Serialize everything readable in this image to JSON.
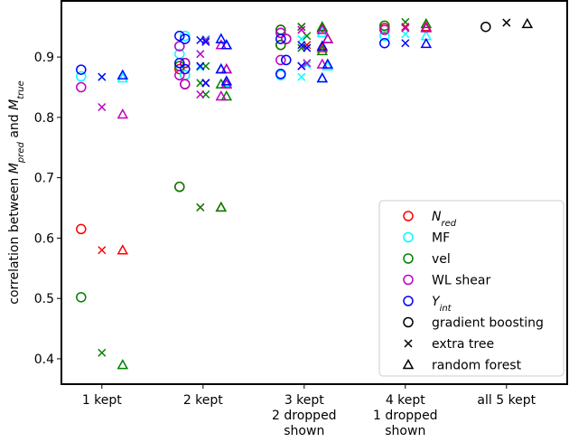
{
  "chart_data": {
    "type": "scatter",
    "y_label": [
      {
        "text": "correlation between "
      },
      {
        "text": "M",
        "italic": true
      },
      {
        "text": "pred",
        "sub": true,
        "italic": true
      },
      {
        "text": " and "
      },
      {
        "text": "M",
        "italic": true
      },
      {
        "text": "true",
        "sub": true,
        "italic": true
      }
    ],
    "categories": [
      [
        "1 kept"
      ],
      [
        "2 kept"
      ],
      [
        "3 kept",
        "2 dropped",
        "shown"
      ],
      [
        "4 kept",
        "1 dropped",
        "shown"
      ],
      [
        "all 5 kept"
      ]
    ],
    "ylim": [
      0.358,
      0.993
    ],
    "yticks": [
      0.4,
      0.5,
      0.6,
      0.7,
      0.8,
      0.9
    ],
    "features": [
      {
        "name": "N",
        "sub": "red",
        "italic": true,
        "color": "#ff0000"
      },
      {
        "name": "MF",
        "color": "#00ffff"
      },
      {
        "name": "vel",
        "color": "#008000"
      },
      {
        "name": "WL shear",
        "color": "#c000c0"
      },
      {
        "name": "Y",
        "sub": "int",
        "italic": true,
        "color": "#0000ff"
      }
    ],
    "models": [
      {
        "name": "gradient boosting",
        "marker": "o",
        "color": "#000000"
      },
      {
        "name": "extra tree",
        "marker": "x",
        "color": "#000000"
      },
      {
        "name": "random forest",
        "marker": "^",
        "color": "#000000"
      }
    ],
    "series": [
      {
        "feature": 0,
        "model": 0,
        "values": [
          [
            0.615
          ],
          [
            0.685,
            0.87,
            0.88,
            0.89
          ],
          [
            0.945,
            0.93,
            0.92
          ],
          [
            0.948
          ],
          []
        ]
      },
      {
        "feature": 0,
        "model": 1,
        "values": [
          [
            0.58
          ],
          [
            0.651,
            0.857,
            0.885,
            0.928
          ],
          [
            0.95,
            0.92,
            0.885
          ],
          [
            0.95
          ],
          []
        ]
      },
      {
        "feature": 0,
        "model": 2,
        "values": [
          [
            0.58
          ],
          [
            0.651,
            0.855,
            0.88,
            0.92
          ],
          [
            0.948,
            0.93,
            0.915
          ],
          [
            0.95
          ],
          []
        ]
      },
      {
        "feature": 1,
        "model": 0,
        "values": [
          [
            0.868
          ],
          [
            0.918,
            0.935,
            0.905,
            0.87
          ],
          [
            0.94,
            0.895,
            0.87
          ],
          [
            0.935
          ],
          []
        ]
      },
      {
        "feature": 1,
        "model": 1,
        "values": [
          [
            0.867
          ],
          [
            0.905,
            0.93,
            0.883,
            0.857
          ],
          [
            0.93,
            0.887,
            0.867
          ],
          [
            0.938
          ],
          []
        ]
      },
      {
        "feature": 1,
        "model": 2,
        "values": [
          [
            0.865
          ],
          [
            0.93,
            0.92,
            0.88,
            0.857
          ],
          [
            0.94,
            0.885,
            0.865
          ],
          [
            0.935
          ],
          []
        ]
      },
      {
        "feature": 2,
        "model": 0,
        "values": [
          [
            0.502
          ],
          [
            0.685,
            0.855,
            0.885,
            0.89
          ],
          [
            0.945,
            0.93,
            0.92
          ],
          [
            0.952
          ],
          []
        ]
      },
      {
        "feature": 2,
        "model": 1,
        "values": [
          [
            0.41
          ],
          [
            0.651,
            0.838,
            0.857,
            0.885
          ],
          [
            0.95,
            0.935,
            0.915
          ],
          [
            0.958
          ],
          []
        ]
      },
      {
        "feature": 2,
        "model": 2,
        "values": [
          [
            0.39
          ],
          [
            0.651,
            0.835,
            0.855,
            0.88
          ],
          [
            0.95,
            0.93,
            0.91
          ],
          [
            0.955
          ],
          []
        ]
      },
      {
        "feature": 3,
        "model": 0,
        "values": [
          [
            0.85
          ],
          [
            0.918,
            0.89,
            0.87,
            0.855
          ],
          [
            0.94,
            0.93,
            0.895
          ],
          [
            0.945
          ],
          []
        ]
      },
      {
        "feature": 3,
        "model": 1,
        "values": [
          [
            0.817
          ],
          [
            0.905,
            0.857,
            0.838,
            0.928
          ],
          [
            0.945,
            0.89,
            0.885
          ],
          [
            0.948
          ],
          []
        ]
      },
      {
        "feature": 3,
        "model": 2,
        "values": [
          [
            0.805
          ],
          [
            0.92,
            0.855,
            0.835,
            0.88
          ],
          [
            0.945,
            0.93,
            0.888
          ],
          [
            0.948
          ],
          []
        ]
      },
      {
        "feature": 4,
        "model": 0,
        "values": [
          [
            0.879
          ],
          [
            0.935,
            0.93,
            0.89,
            0.88
          ],
          [
            0.93,
            0.895,
            0.872
          ],
          [
            0.923
          ],
          []
        ]
      },
      {
        "feature": 4,
        "model": 1,
        "values": [
          [
            0.867
          ],
          [
            0.928,
            0.925,
            0.885,
            0.857
          ],
          [
            0.92,
            0.915,
            0.885
          ],
          [
            0.923
          ],
          []
        ]
      },
      {
        "feature": 4,
        "model": 2,
        "values": [
          [
            0.87
          ],
          [
            0.93,
            0.92,
            0.88,
            0.86
          ],
          [
            0.918,
            0.888,
            0.865
          ],
          [
            0.922
          ],
          []
        ]
      },
      {
        "model": 0,
        "values": [
          [],
          [],
          [],
          [],
          [
            0.95
          ]
        ]
      },
      {
        "model": 1,
        "values": [
          [],
          [],
          [],
          [],
          [
            0.957
          ]
        ]
      },
      {
        "model": 2,
        "values": [
          [],
          [],
          [],
          [],
          [
            0.955
          ]
        ]
      }
    ]
  }
}
